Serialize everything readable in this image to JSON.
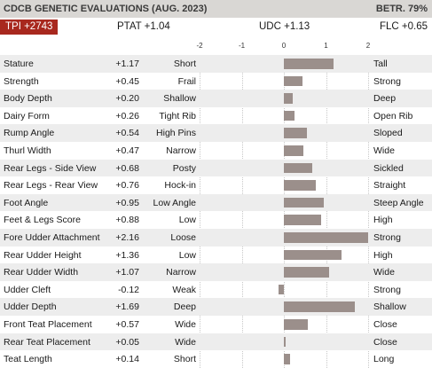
{
  "header": {
    "title": "CDCB GENETIC EVALUATIONS (AUG. 2023)",
    "reliability": "BETR. 79%"
  },
  "summary": {
    "tpi": "TPI +2743",
    "ptat": "PTAT +1.04",
    "udc": "UDC +1.13",
    "flc": "FLC +0.65"
  },
  "colors": {
    "bar": "#9b8f8b",
    "tpi_badge": "#a8281e",
    "header_bg": "#d9d7d4",
    "row_shade": "#ededed"
  },
  "chart_data": {
    "type": "bar",
    "orientation": "horizontal",
    "xlim": [
      -2,
      2
    ],
    "ticks": [
      "-2",
      "-1",
      "0",
      "1",
      "2"
    ],
    "tick_values": [
      -2,
      -1,
      0,
      1,
      2
    ],
    "rows": [
      {
        "trait": "Stature",
        "value_label": "+1.17",
        "value": 1.17,
        "low": "Short",
        "high": "Tall"
      },
      {
        "trait": "Strength",
        "value_label": "+0.45",
        "value": 0.45,
        "low": "Frail",
        "high": "Strong"
      },
      {
        "trait": "Body Depth",
        "value_label": "+0.20",
        "value": 0.2,
        "low": "Shallow",
        "high": "Deep"
      },
      {
        "trait": "Dairy Form",
        "value_label": "+0.26",
        "value": 0.26,
        "low": "Tight Rib",
        "high": "Open Rib"
      },
      {
        "trait": "Rump Angle",
        "value_label": "+0.54",
        "value": 0.54,
        "low": "High Pins",
        "high": "Sloped"
      },
      {
        "trait": "Thurl Width",
        "value_label": "+0.47",
        "value": 0.47,
        "low": "Narrow",
        "high": "Wide"
      },
      {
        "trait": "Rear Legs - Side View",
        "value_label": "+0.68",
        "value": 0.68,
        "low": "Posty",
        "high": "Sickled"
      },
      {
        "trait": "Rear Legs - Rear View",
        "value_label": "+0.76",
        "value": 0.76,
        "low": "Hock-in",
        "high": "Straight"
      },
      {
        "trait": "Foot Angle",
        "value_label": "+0.95",
        "value": 0.95,
        "low": "Low Angle",
        "high": "Steep Angle"
      },
      {
        "trait": "Feet & Legs Score",
        "value_label": "+0.88",
        "value": 0.88,
        "low": "Low",
        "high": "High"
      },
      {
        "trait": "Fore Udder Attachment",
        "value_label": "+2.16",
        "value": 2.16,
        "low": "Loose",
        "high": "Strong"
      },
      {
        "trait": "Rear Udder Height",
        "value_label": "+1.36",
        "value": 1.36,
        "low": "Low",
        "high": "High"
      },
      {
        "trait": "Rear Udder Width",
        "value_label": "+1.07",
        "value": 1.07,
        "low": "Narrow",
        "high": "Wide"
      },
      {
        "trait": "Udder Cleft",
        "value_label": "-0.12",
        "value": -0.12,
        "low": "Weak",
        "high": "Strong"
      },
      {
        "trait": "Udder Depth",
        "value_label": "+1.69",
        "value": 1.69,
        "low": "Deep",
        "high": "Shallow"
      },
      {
        "trait": "Front Teat Placement",
        "value_label": "+0.57",
        "value": 0.57,
        "low": "Wide",
        "high": "Close"
      },
      {
        "trait": "Rear Teat Placement",
        "value_label": "+0.05",
        "value": 0.05,
        "low": "Wide",
        "high": "Close"
      },
      {
        "trait": "Teat Length",
        "value_label": "+0.14",
        "value": 0.14,
        "low": "Short",
        "high": "Long"
      }
    ]
  }
}
